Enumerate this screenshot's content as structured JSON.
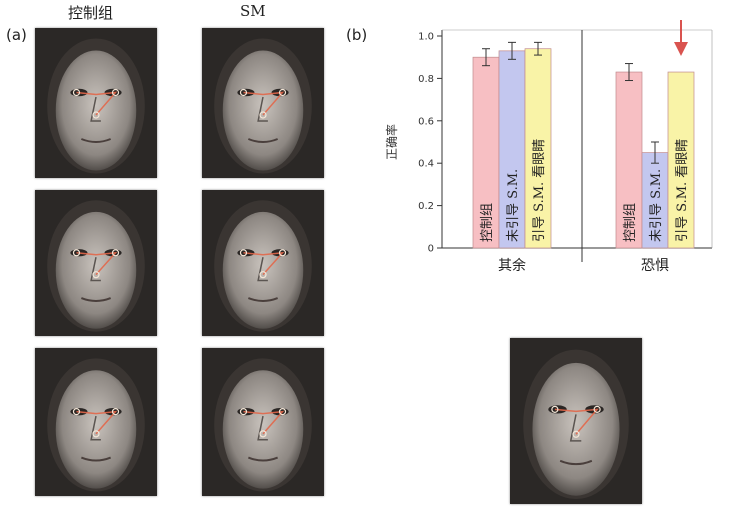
{
  "panel_a": {
    "label": "(a)",
    "columns": [
      "控制组",
      "SM"
    ]
  },
  "panel_b": {
    "label": "(b)"
  },
  "colors": {
    "control": "#f7bfc3",
    "unguided": "#c3c7ef",
    "guided": "#f9f3a7",
    "arrow": "#d9534f",
    "gaze": "#e2674a"
  },
  "chart_data": {
    "type": "bar",
    "ylabel": "正确率",
    "ylim": [
      0,
      1.0
    ],
    "yticks": [
      "1.0",
      "0.8",
      "0.6",
      "0.4",
      "0.2",
      "0"
    ],
    "categories": [
      "其余",
      "恐惧"
    ],
    "series": [
      {
        "name": "控制组",
        "values": [
          0.9,
          0.83
        ],
        "errors": [
          0.04,
          0.04
        ]
      },
      {
        "name": "未引导 S.M.",
        "values": [
          0.93,
          0.45
        ],
        "errors": [
          0.04,
          0.05
        ]
      },
      {
        "name": "引导 S.M. 看眼睛",
        "values": [
          0.94,
          0.83
        ],
        "errors": [
          0.03,
          0
        ]
      }
    ]
  }
}
